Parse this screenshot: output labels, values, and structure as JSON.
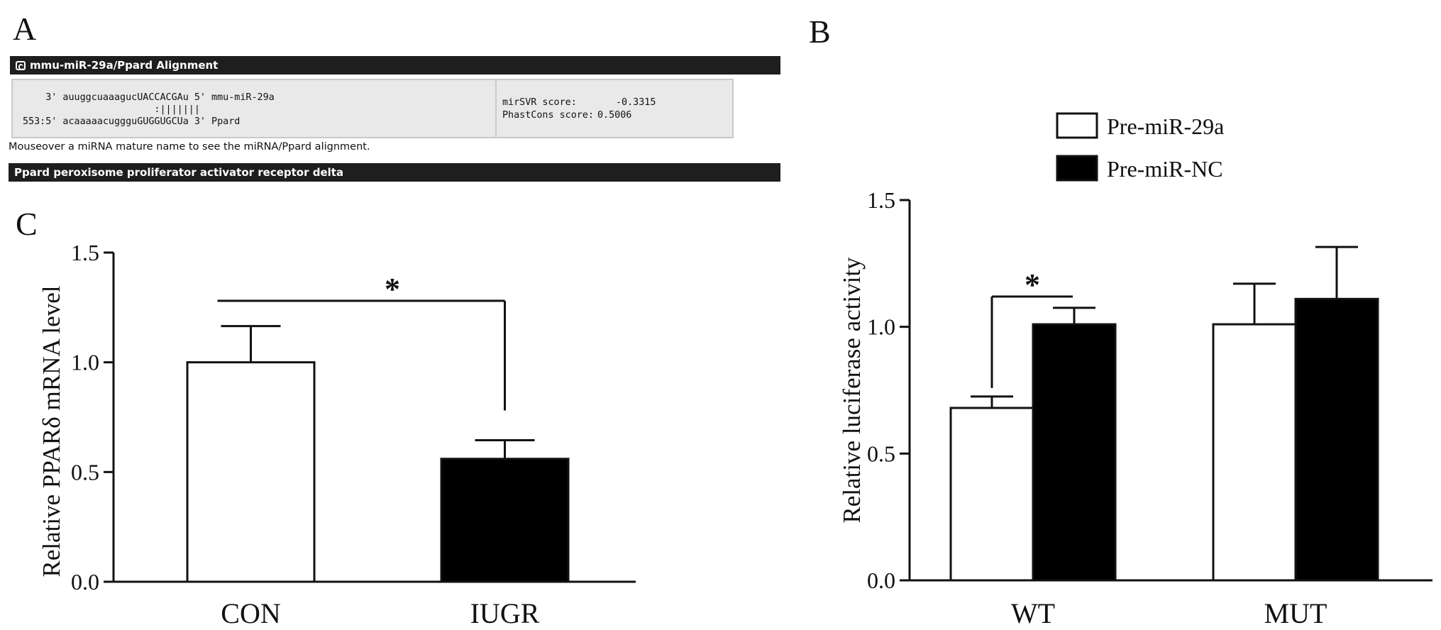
{
  "panels": {
    "a": "A",
    "b": "B",
    "c": "C"
  },
  "alignment": {
    "header": "mmu-miR-29a/Ppard Alignment",
    "mirna_line": "    3' auuggcuaaagucUACCACGAu 5' mmu-miR-29a",
    "match_line": "                       :|||||||",
    "target_line": "553:5' acaaaaacuggguGUGGUGCUa 3' Ppard",
    "mirsvr_label": "mirSVR score:",
    "mirsvr_value": "-0.3315",
    "phastcons_label": "PhastCons score:",
    "phastcons_value": "0.5006",
    "note": "Mouseover a miRNA mature name to see the miRNA/Ppard alignment.",
    "gene_header": "Ppard peroxisome proliferator activator receptor delta"
  },
  "chart_data": [
    {
      "panel": "C",
      "type": "bar",
      "categories": [
        "CON",
        "IUGR"
      ],
      "values": [
        1.0,
        0.56
      ],
      "errors": [
        0.165,
        0.085
      ],
      "colors": [
        "#ffffff",
        "#000000"
      ],
      "ylabel": "Relative PPARδ mRNA level",
      "ylim": [
        0,
        1.5
      ],
      "yticks": [
        "0.0",
        "0.5",
        "1.0",
        "1.5"
      ],
      "significance": [
        {
          "between": [
            "CON",
            "IUGR"
          ],
          "label": "*"
        }
      ]
    },
    {
      "panel": "B",
      "type": "bar",
      "categories": [
        "WT",
        "MUT"
      ],
      "series": [
        {
          "name": "Pre-miR-29a",
          "color": "#ffffff",
          "values": [
            0.68,
            1.01
          ],
          "errors": [
            0.045,
            0.16
          ]
        },
        {
          "name": "Pre-miR-NC",
          "color": "#000000",
          "values": [
            1.01,
            1.11
          ],
          "errors": [
            0.065,
            0.205
          ]
        }
      ],
      "ylabel": "Relative luciferase activity",
      "ylim": [
        0,
        1.5
      ],
      "yticks": [
        "0.0",
        "0.5",
        "1.0",
        "1.5"
      ],
      "legend_position": "top",
      "significance": [
        {
          "group": "WT",
          "label": "*"
        }
      ]
    }
  ]
}
